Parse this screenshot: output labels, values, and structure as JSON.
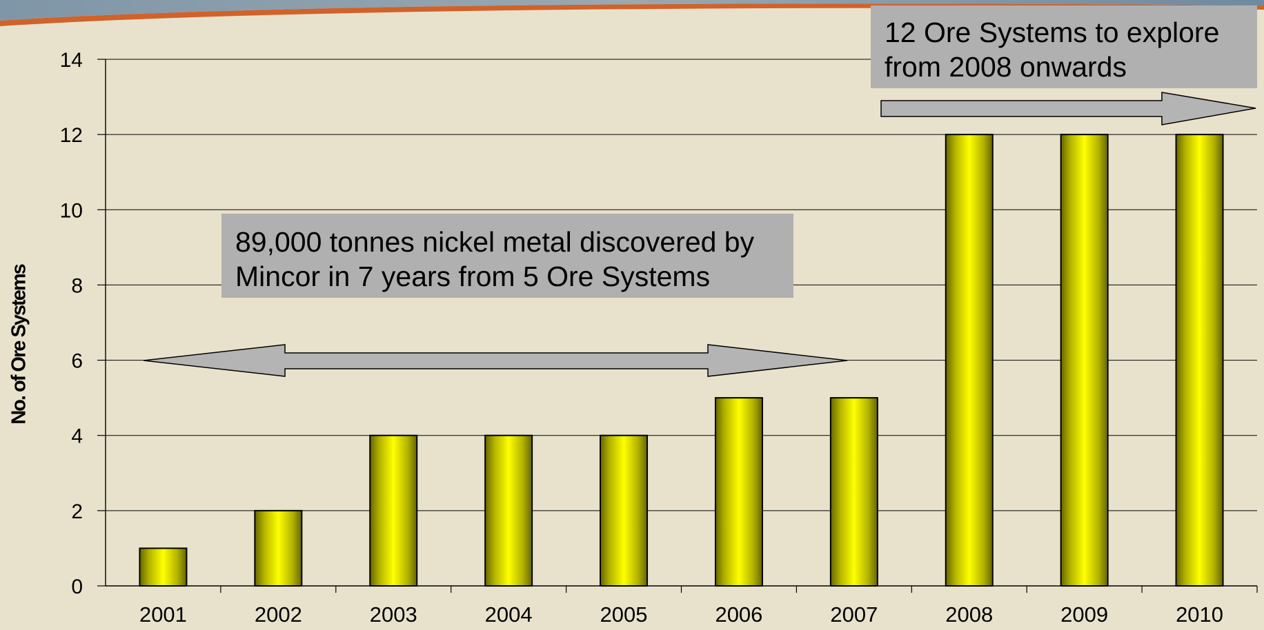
{
  "colors": {
    "bar_fill_center": "#ffff00",
    "bar_fill_edge": "#666600",
    "background": "#e8e2cc",
    "callout_fill": "#b0b0b0",
    "arrow_fill": "#b4b4b4"
  },
  "annotations": {
    "top_callout": [
      "12 Ore Systems to explore",
      "from 2008 onwards"
    ],
    "middle_callout": [
      "89,000 tonnes nickel metal discovered by",
      "Mincor in 7 years from 5 Ore Systems"
    ]
  },
  "chart_data": {
    "type": "bar",
    "title": "",
    "xlabel": "",
    "ylabel": "No. of Ore Systems",
    "categories": [
      "2001",
      "2002",
      "2003",
      "2004",
      "2005",
      "2006",
      "2007",
      "2008",
      "2009",
      "2010"
    ],
    "values": [
      1,
      2,
      4,
      4,
      4,
      5,
      5,
      12,
      12,
      12
    ],
    "ylim": [
      0,
      14
    ],
    "yticks": [
      0,
      2,
      4,
      6,
      8,
      10,
      12,
      14
    ],
    "grid": true,
    "legend": "none"
  }
}
